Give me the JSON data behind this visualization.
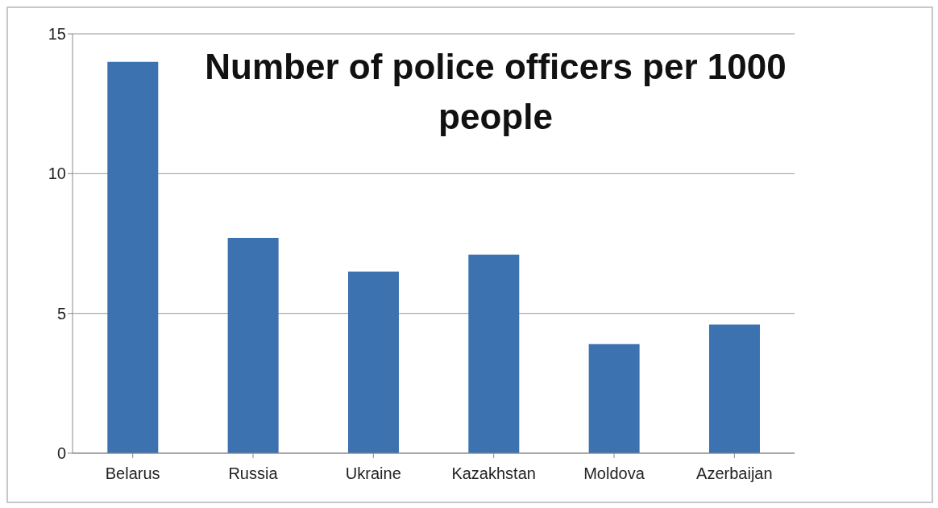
{
  "chart_data": {
    "type": "bar",
    "title": "Number of police officers per 1000 people",
    "categories": [
      "Belarus",
      "Russia",
      "Ukraine",
      "Kazakhstan",
      "Moldova",
      "Azerbaijan"
    ],
    "values": [
      14,
      7.7,
      6.5,
      7.1,
      3.9,
      4.6
    ],
    "color": "#3d72b0",
    "ylim": [
      0,
      15
    ],
    "yticks": [
      0,
      5,
      10,
      15
    ],
    "grid": "y"
  }
}
